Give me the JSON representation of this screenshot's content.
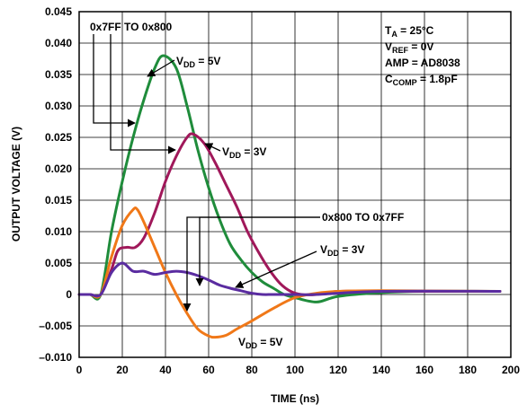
{
  "chart_data": {
    "type": "line",
    "title": "",
    "xlabel": "TIME (ns)",
    "ylabel": "OUTPUT VOLTAGE (V)",
    "xlim": [
      0,
      200
    ],
    "ylim": [
      -0.01,
      0.045
    ],
    "x_ticks": [
      "0",
      "20",
      "40",
      "60",
      "80",
      "100",
      "120",
      "140",
      "160",
      "180",
      "200"
    ],
    "y_ticks": [
      "0.045",
      "0.040",
      "0.035",
      "0.030",
      "0.025",
      "0.020",
      "0.015",
      "0.010",
      "0.005",
      "0",
      "–0.005",
      "–0.010"
    ],
    "grid": true,
    "series": [
      {
        "color": "#1f8c3b",
        "x": [
          0,
          5,
          10,
          15,
          20,
          25,
          30,
          35,
          39,
          45,
          50,
          55,
          60,
          65,
          70,
          75,
          80,
          85,
          90,
          95,
          100,
          110,
          120,
          140,
          160,
          195
        ],
        "y": [
          0,
          0,
          0,
          0.01,
          0.018,
          0.025,
          0.031,
          0.036,
          0.038,
          0.036,
          0.03,
          0.023,
          0.017,
          0.012,
          0.008,
          0.0055,
          0.0035,
          0.002,
          0.001,
          0,
          -0.0005,
          -0.0012,
          -0.0003,
          0.0003,
          0.0005,
          0.0005
        ]
      },
      {
        "color": "#a0185a",
        "x": [
          0,
          5,
          10,
          15,
          18,
          22,
          26,
          30,
          35,
          40,
          45,
          50,
          53,
          58,
          63,
          68,
          73,
          78,
          83,
          88,
          93,
          98,
          103,
          110,
          120,
          140,
          195
        ],
        "y": [
          0,
          0,
          0,
          0.004,
          0.007,
          0.0075,
          0.0075,
          0.009,
          0.013,
          0.018,
          0.022,
          0.025,
          0.0255,
          0.024,
          0.021,
          0.0175,
          0.014,
          0.01,
          0.0068,
          0.004,
          0.0018,
          0.0005,
          0,
          0,
          0.0005,
          0.0005,
          0.0005
        ]
      },
      {
        "color": "#f07818",
        "x": [
          0,
          5,
          10,
          15,
          20,
          25,
          27,
          30,
          35,
          40,
          45,
          50,
          55,
          60,
          63,
          68,
          73,
          80,
          90,
          100,
          110,
          120,
          140,
          195
        ],
        "y": [
          0,
          0,
          0,
          0.006,
          0.011,
          0.0135,
          0.0135,
          0.0115,
          0.0075,
          0.0035,
          0,
          -0.003,
          -0.0055,
          -0.0066,
          -0.0068,
          -0.0065,
          -0.0055,
          -0.0042,
          -0.0022,
          -0.0005,
          0.0002,
          0.0005,
          0.0006,
          0.0005
        ]
      },
      {
        "color": "#5a2ca0",
        "x": [
          0,
          5,
          10,
          15,
          20,
          25,
          30,
          35,
          40,
          45,
          50,
          55,
          60,
          65,
          70,
          75,
          80,
          85,
          90,
          100,
          110,
          140,
          195
        ],
        "y": [
          0,
          0,
          0,
          0.0035,
          0.005,
          0.0037,
          0.0037,
          0.0032,
          0.0035,
          0.0037,
          0.0035,
          0.003,
          0.0023,
          0.0015,
          0.001,
          0.0006,
          0.0002,
          0,
          0,
          0,
          0,
          0.0005,
          0.0005
        ]
      }
    ],
    "annotations": {
      "label_0x7ff_to_0x800": "0x7FF TO 0x800",
      "label_0x800_to_0x7ff": "0x800 TO 0x7FF",
      "vdd_green_main": "V",
      "vdd_green_sub": "DD",
      "vdd_green_val": " = 5V",
      "vdd_red_main": "V",
      "vdd_red_sub": "DD",
      "vdd_red_val": " = 3V",
      "vdd_purple_main": "V",
      "vdd_purple_sub": "DD",
      "vdd_purple_val": " = 3V",
      "vdd_orange_main": "V",
      "vdd_orange_sub": "DD",
      "vdd_orange_val": " = 5V",
      "cond_ta_main": "T",
      "cond_ta_sub": "A",
      "cond_ta_val": " = 25°C",
      "cond_vref_main": "V",
      "cond_vref_sub": "REF",
      "cond_vref_val": " = 0V",
      "cond_amp": "AMP = AD8038",
      "cond_ccomp_main": "C",
      "cond_ccomp_sub": "COMP",
      "cond_ccomp_val": " = 1.8pF"
    }
  }
}
